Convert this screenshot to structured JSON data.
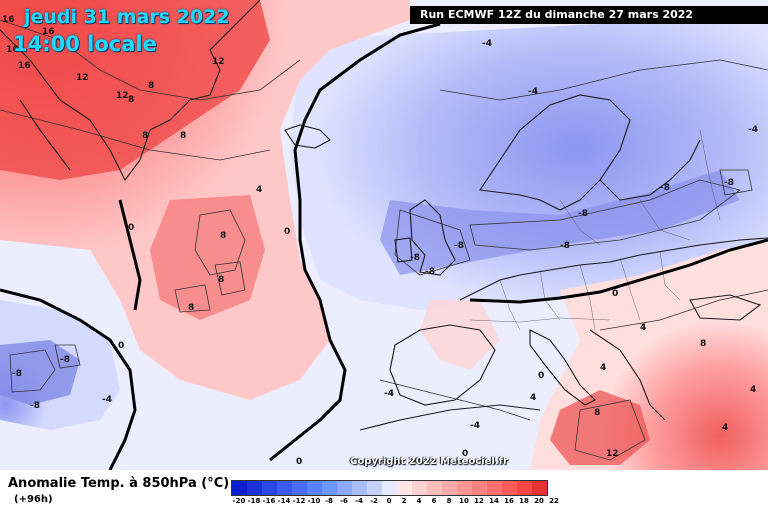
{
  "header": {
    "date_line1": "jeudi 31 mars 2022",
    "date_line2": "14:00 locale",
    "run_info": "Run ECMWF 12Z du dimanche 27 mars 2022"
  },
  "footer": {
    "title": "Anomalie Temp. à 850hPa (°C)",
    "lead_time": "(+96h)",
    "copyright": "Copyright 2022 Meteociel.fr"
  },
  "legend": {
    "ticks": [
      "-20",
      "-18",
      "-16",
      "-14",
      "-12",
      "-10",
      "-8",
      "-6",
      "-4",
      "-2",
      "0",
      "2",
      "4",
      "6",
      "8",
      "10",
      "12",
      "14",
      "16",
      "18",
      "20",
      "22"
    ],
    "colors": [
      "#0a1ed2",
      "#1e32dc",
      "#2d46e6",
      "#3c5af0",
      "#4b6ef5",
      "#5a82fa",
      "#6e96ff",
      "#8caaff",
      "#aabeff",
      "#c8d2ff",
      "#e6ebff",
      "#ffe6e6",
      "#ffd2d2",
      "#ffbebe",
      "#ffaaaa",
      "#ff9696",
      "#ff8282",
      "#ff6e6e",
      "#ff5a5a",
      "#f54646",
      "#e63232",
      "#d21e1e"
    ]
  },
  "map": {
    "contour_labels": [
      "16",
      "16",
      "16",
      "16",
      "12",
      "12",
      "12",
      "8",
      "8",
      "8",
      "8",
      "4",
      "0",
      "0",
      "0",
      "8",
      "8",
      "8",
      "-8",
      "-8",
      "-8",
      "-4",
      "-4",
      "-4",
      "-4",
      "-8",
      "-8",
      "-8",
      "-8",
      "-8",
      "-8",
      "-8",
      "0",
      "0",
      "0",
      "4",
      "4",
      "4",
      "8",
      "8",
      "12",
      "-4",
      "-4",
      "4",
      "4",
      "0"
    ]
  }
}
